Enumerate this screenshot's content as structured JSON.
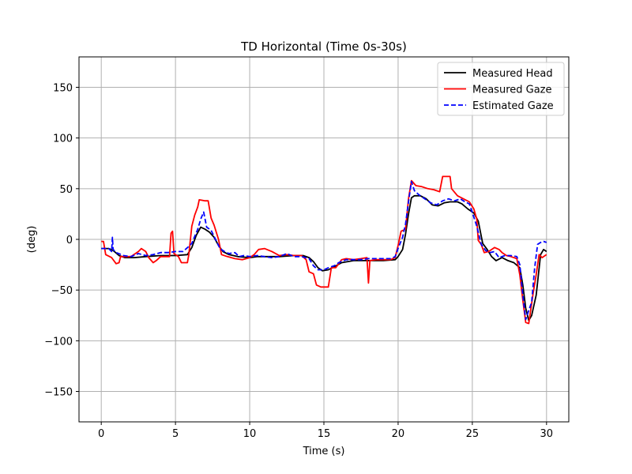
{
  "chart_data": {
    "type": "line",
    "title": "TD Horizontal (Time 0s-30s)",
    "xlabel": "Time (s)",
    "ylabel": "(deg)",
    "xlim": [
      -1.5,
      31.5
    ],
    "ylim": [
      -180,
      180
    ],
    "xticks": [
      0,
      5,
      10,
      15,
      20,
      25,
      30
    ],
    "yticks": [
      -150,
      -100,
      -50,
      0,
      50,
      100,
      150
    ],
    "ytick_labels": [
      "−150",
      "−100",
      "−50",
      "0",
      "50",
      "100",
      "150"
    ],
    "grid": true,
    "legend_position": "top-right",
    "series": [
      {
        "name": "Measured Head",
        "color": "#000000",
        "dash": "solid",
        "points": [
          [
            0,
            -9
          ],
          [
            0.5,
            -9
          ],
          [
            0.8,
            -11
          ],
          [
            1.2,
            -16
          ],
          [
            1.6,
            -18
          ],
          [
            2.2,
            -18
          ],
          [
            3,
            -17
          ],
          [
            4,
            -16
          ],
          [
            5,
            -16
          ],
          [
            5.8,
            -15
          ],
          [
            6.1,
            -8
          ],
          [
            6.4,
            4
          ],
          [
            6.7,
            12
          ],
          [
            7,
            10
          ],
          [
            7.3,
            7
          ],
          [
            7.6,
            2
          ],
          [
            7.9,
            -6
          ],
          [
            8.2,
            -12
          ],
          [
            8.6,
            -15
          ],
          [
            9.2,
            -17
          ],
          [
            10,
            -18
          ],
          [
            10.5,
            -17
          ],
          [
            11,
            -17
          ],
          [
            12,
            -17
          ],
          [
            13,
            -16
          ],
          [
            13.6,
            -16
          ],
          [
            14,
            -18
          ],
          [
            14.3,
            -22
          ],
          [
            14.6,
            -28
          ],
          [
            14.9,
            -31
          ],
          [
            15.3,
            -30
          ],
          [
            15.7,
            -27
          ],
          [
            16.2,
            -23
          ],
          [
            17,
            -21
          ],
          [
            18,
            -21
          ],
          [
            19,
            -21
          ],
          [
            19.8,
            -20
          ],
          [
            20,
            -17
          ],
          [
            20.3,
            -10
          ],
          [
            20.5,
            5
          ],
          [
            20.7,
            25
          ],
          [
            20.9,
            41
          ],
          [
            21.1,
            43
          ],
          [
            21.5,
            43
          ],
          [
            21.9,
            40
          ],
          [
            22.3,
            34
          ],
          [
            22.7,
            33
          ],
          [
            23.1,
            36
          ],
          [
            23.5,
            37
          ],
          [
            24,
            37
          ],
          [
            24.3,
            35
          ],
          [
            24.7,
            30
          ],
          [
            25.1,
            26
          ],
          [
            25.4,
            18
          ],
          [
            25.7,
            -4
          ],
          [
            26,
            -10
          ],
          [
            26.3,
            -17
          ],
          [
            26.6,
            -21
          ],
          [
            27,
            -18
          ],
          [
            27.4,
            -21
          ],
          [
            27.8,
            -23
          ],
          [
            28.2,
            -28
          ],
          [
            28.4,
            -45
          ],
          [
            28.6,
            -68
          ],
          [
            28.8,
            -80
          ],
          [
            29,
            -75
          ],
          [
            29.3,
            -55
          ],
          [
            29.6,
            -15
          ],
          [
            29.8,
            -10
          ],
          [
            30,
            -12
          ]
        ]
      },
      {
        "name": "Measured Gaze",
        "color": "#ff0000",
        "dash": "solid",
        "points": [
          [
            0,
            -2
          ],
          [
            0.15,
            -2
          ],
          [
            0.3,
            -15
          ],
          [
            0.7,
            -18
          ],
          [
            1,
            -24
          ],
          [
            1.2,
            -23
          ],
          [
            1.3,
            -17
          ],
          [
            2,
            -17
          ],
          [
            2.5,
            -12
          ],
          [
            2.7,
            -9
          ],
          [
            3,
            -12
          ],
          [
            3.2,
            -18
          ],
          [
            3.5,
            -23
          ],
          [
            3.7,
            -21
          ],
          [
            4,
            -17
          ],
          [
            4.6,
            -17
          ],
          [
            4.7,
            6
          ],
          [
            4.8,
            8
          ],
          [
            4.9,
            -14
          ],
          [
            5.2,
            -17
          ],
          [
            5.4,
            -23
          ],
          [
            5.8,
            -23
          ],
          [
            5.9,
            -15
          ],
          [
            6.1,
            13
          ],
          [
            6.3,
            24
          ],
          [
            6.5,
            32
          ],
          [
            6.6,
            39
          ],
          [
            7,
            38
          ],
          [
            7.2,
            38
          ],
          [
            7.4,
            21
          ],
          [
            7.6,
            14
          ],
          [
            7.9,
            0
          ],
          [
            8.1,
            -15
          ],
          [
            8.5,
            -17
          ],
          [
            9,
            -19
          ],
          [
            9.5,
            -20
          ],
          [
            10,
            -18
          ],
          [
            10.3,
            -15
          ],
          [
            10.6,
            -10
          ],
          [
            11,
            -9
          ],
          [
            11.5,
            -12
          ],
          [
            12,
            -16
          ],
          [
            12.5,
            -15
          ],
          [
            13,
            -16
          ],
          [
            13.5,
            -16
          ],
          [
            13.8,
            -20
          ],
          [
            14,
            -32
          ],
          [
            14.3,
            -34
          ],
          [
            14.5,
            -45
          ],
          [
            14.8,
            -47
          ],
          [
            15.3,
            -47
          ],
          [
            15.5,
            -28
          ],
          [
            15.8,
            -28
          ],
          [
            16.2,
            -20
          ],
          [
            16.5,
            -19
          ],
          [
            17,
            -20
          ],
          [
            17.5,
            -19
          ],
          [
            17.9,
            -18
          ],
          [
            18,
            -43
          ],
          [
            18.1,
            -21
          ],
          [
            18.5,
            -20
          ],
          [
            19.5,
            -20
          ],
          [
            19.8,
            -18
          ],
          [
            20,
            -6
          ],
          [
            20.2,
            8
          ],
          [
            20.5,
            10
          ],
          [
            20.7,
            40
          ],
          [
            20.9,
            58
          ],
          [
            21.2,
            53
          ],
          [
            21.6,
            52
          ],
          [
            22,
            50
          ],
          [
            22.4,
            49
          ],
          [
            22.8,
            47
          ],
          [
            23,
            62
          ],
          [
            23.5,
            62
          ],
          [
            23.6,
            50
          ],
          [
            24,
            43
          ],
          [
            24.4,
            40
          ],
          [
            24.8,
            37
          ],
          [
            25.1,
            30
          ],
          [
            25.3,
            20
          ],
          [
            25.4,
            -1
          ],
          [
            25.6,
            -5
          ],
          [
            25.8,
            -13
          ],
          [
            26.1,
            -12
          ],
          [
            26.5,
            -8
          ],
          [
            26.8,
            -10
          ],
          [
            27,
            -13
          ],
          [
            27.3,
            -16
          ],
          [
            27.6,
            -17
          ],
          [
            28,
            -19
          ],
          [
            28.2,
            -35
          ],
          [
            28.4,
            -60
          ],
          [
            28.6,
            -82
          ],
          [
            28.8,
            -83
          ],
          [
            29.1,
            -53
          ],
          [
            29.3,
            -35
          ],
          [
            29.5,
            -15
          ],
          [
            29.7,
            -18
          ],
          [
            30,
            -15
          ]
        ]
      },
      {
        "name": "Estimated Gaze",
        "color": "#0000ff",
        "dash": "dashed",
        "points": [
          [
            0,
            -9
          ],
          [
            0.5,
            -9
          ],
          [
            0.7,
            -12
          ],
          [
            0.75,
            2
          ],
          [
            0.8,
            -10
          ],
          [
            1,
            -13
          ],
          [
            1.5,
            -16
          ],
          [
            2,
            -17
          ],
          [
            2.5,
            -14
          ],
          [
            3,
            -16
          ],
          [
            3.5,
            -15
          ],
          [
            4,
            -13
          ],
          [
            4.5,
            -13
          ],
          [
            5,
            -12
          ],
          [
            5.5,
            -12
          ],
          [
            5.9,
            -7
          ],
          [
            6.1,
            -4
          ],
          [
            6.3,
            3
          ],
          [
            6.5,
            10
          ],
          [
            6.7,
            20
          ],
          [
            6.9,
            27
          ],
          [
            7.1,
            12
          ],
          [
            7.4,
            9
          ],
          [
            7.7,
            0
          ],
          [
            8,
            -9
          ],
          [
            8.3,
            -12
          ],
          [
            8.6,
            -14
          ],
          [
            9,
            -13
          ],
          [
            9.3,
            -17
          ],
          [
            9.6,
            -16
          ],
          [
            10,
            -17
          ],
          [
            10.5,
            -16
          ],
          [
            11,
            -17
          ],
          [
            11.5,
            -18
          ],
          [
            12,
            -17
          ],
          [
            12.5,
            -14
          ],
          [
            13,
            -17
          ],
          [
            13.5,
            -17
          ],
          [
            14,
            -19
          ],
          [
            14.3,
            -26
          ],
          [
            14.6,
            -30
          ],
          [
            15,
            -30
          ],
          [
            15.3,
            -28
          ],
          [
            15.7,
            -26
          ],
          [
            16,
            -23
          ],
          [
            16.5,
            -20
          ],
          [
            17,
            -20
          ],
          [
            17.5,
            -20
          ],
          [
            18,
            -19
          ],
          [
            18.5,
            -19
          ],
          [
            19,
            -19
          ],
          [
            19.5,
            -19
          ],
          [
            19.8,
            -17
          ],
          [
            20,
            -9
          ],
          [
            20.3,
            2
          ],
          [
            20.5,
            15
          ],
          [
            20.7,
            37
          ],
          [
            20.9,
            57
          ],
          [
            21.1,
            48
          ],
          [
            21.4,
            44
          ],
          [
            21.8,
            40
          ],
          [
            22.2,
            36
          ],
          [
            22.6,
            34
          ],
          [
            23,
            38
          ],
          [
            23.4,
            40
          ],
          [
            23.8,
            38
          ],
          [
            24.2,
            40
          ],
          [
            24.5,
            37
          ],
          [
            24.8,
            35
          ],
          [
            25.1,
            22
          ],
          [
            25.3,
            13
          ],
          [
            25.6,
            -5
          ],
          [
            25.9,
            -11
          ],
          [
            26.2,
            -13
          ],
          [
            26.5,
            -12
          ],
          [
            26.8,
            -18
          ],
          [
            27.2,
            -16
          ],
          [
            27.6,
            -16
          ],
          [
            28,
            -17
          ],
          [
            28.2,
            -25
          ],
          [
            28.4,
            -55
          ],
          [
            28.6,
            -79
          ],
          [
            28.8,
            -70
          ],
          [
            29,
            -62
          ],
          [
            29.2,
            -28
          ],
          [
            29.4,
            -5
          ],
          [
            29.6,
            -3
          ],
          [
            29.8,
            -2
          ],
          [
            30,
            -3
          ]
        ]
      }
    ]
  }
}
